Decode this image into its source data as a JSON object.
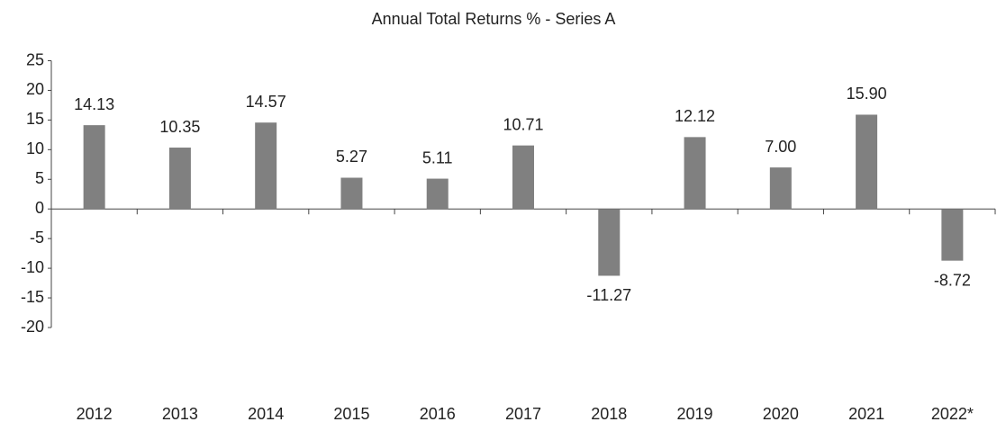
{
  "chart_data": {
    "type": "bar",
    "title": "Annual Total Returns % - Series A",
    "categories": [
      "2012",
      "2013",
      "2014",
      "2015",
      "2016",
      "2017",
      "2018",
      "2019",
      "2020",
      "2021",
      "2022*"
    ],
    "values": [
      14.13,
      10.35,
      14.57,
      5.27,
      5.11,
      10.71,
      -11.27,
      12.12,
      7.0,
      15.9,
      -8.72
    ],
    "value_labels": [
      "14.13",
      "10.35",
      "14.57",
      "5.27",
      "5.11",
      "10.71",
      "-11.27",
      "12.12",
      "7.00",
      "15.90",
      "-8.72"
    ],
    "color": "#808080",
    "ylim": [
      -20,
      25
    ],
    "yticks": [
      -20,
      -15,
      -10,
      -5,
      0,
      5,
      10,
      15,
      20,
      25
    ],
    "grid": false
  }
}
